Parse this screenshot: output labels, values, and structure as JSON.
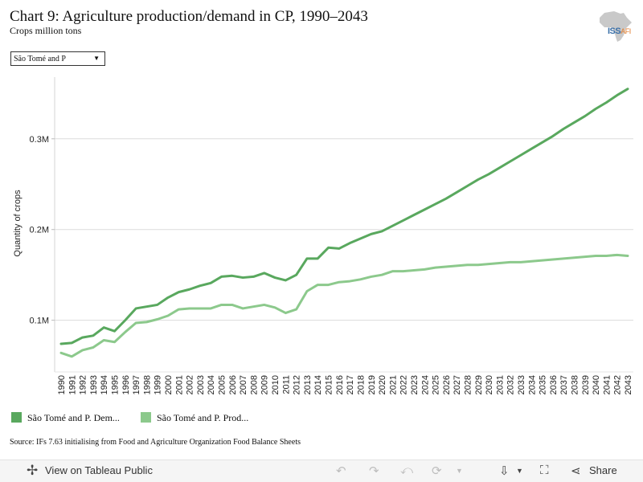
{
  "header": {
    "title": "Chart 9: Agriculture production/demand in CP, 1990–2043",
    "subtitle": "Crops million tons",
    "logo_text": "ISS",
    "logo_sub": "AFI"
  },
  "filter": {
    "selected": "São Tomé and P"
  },
  "legend": [
    {
      "label": "São Tomé and P. Dem...",
      "color": "#59a85e"
    },
    {
      "label": "São Tomé and P. Prod...",
      "color": "#8cc98c"
    }
  ],
  "source": "Source: IFs 7.63 initialising from Food and Agriculture Organization Food Balance Sheets",
  "toolbar": {
    "view_label": "View on Tableau Public",
    "share_label": "Share",
    "icons": [
      "tableau-logo-icon",
      "undo-icon",
      "redo-icon",
      "revert-icon",
      "refresh-icon",
      "download-icon",
      "fullscreen-icon",
      "share-icon"
    ]
  },
  "chart_data": {
    "type": "line",
    "title": "",
    "xlabel": "",
    "ylabel": "Quantity of crops",
    "ylim": [
      0.043,
      0.368
    ],
    "yticks": [
      0.1,
      0.2,
      0.3
    ],
    "ytick_labels": [
      "0.1M",
      "0.2M",
      "0.3M"
    ],
    "grid": true,
    "legend_position": "bottom-left",
    "x": [
      1990,
      1991,
      1992,
      1993,
      1994,
      1995,
      1996,
      1997,
      1998,
      1999,
      2000,
      2001,
      2002,
      2003,
      2004,
      2005,
      2006,
      2007,
      2008,
      2009,
      2010,
      2011,
      2012,
      2013,
      2014,
      2015,
      2016,
      2017,
      2018,
      2019,
      2020,
      2021,
      2022,
      2023,
      2024,
      2025,
      2026,
      2027,
      2028,
      2029,
      2030,
      2031,
      2032,
      2033,
      2034,
      2035,
      2036,
      2037,
      2038,
      2039,
      2040,
      2041,
      2042,
      2043
    ],
    "series": [
      {
        "name": "São Tomé and P. Dem...",
        "color": "#59a85e",
        "values": [
          0.074,
          0.075,
          0.081,
          0.083,
          0.092,
          0.088,
          0.1,
          0.113,
          0.115,
          0.117,
          0.125,
          0.131,
          0.134,
          0.138,
          0.141,
          0.148,
          0.149,
          0.147,
          0.148,
          0.152,
          0.147,
          0.144,
          0.15,
          0.168,
          0.168,
          0.18,
          0.179,
          0.185,
          0.19,
          0.195,
          0.198,
          0.204,
          0.21,
          0.216,
          0.222,
          0.228,
          0.234,
          0.241,
          0.248,
          0.255,
          0.261,
          0.268,
          0.275,
          0.282,
          0.289,
          0.296,
          0.303,
          0.311,
          0.318,
          0.325,
          0.333,
          0.34,
          0.348,
          0.355
        ]
      },
      {
        "name": "São Tomé and P. Prod...",
        "color": "#8cc98c",
        "values": [
          0.064,
          0.06,
          0.067,
          0.07,
          0.078,
          0.076,
          0.087,
          0.097,
          0.098,
          0.101,
          0.105,
          0.112,
          0.113,
          0.113,
          0.113,
          0.117,
          0.117,
          0.113,
          0.115,
          0.117,
          0.114,
          0.108,
          0.112,
          0.132,
          0.139,
          0.139,
          0.142,
          0.143,
          0.145,
          0.148,
          0.15,
          0.154,
          0.154,
          0.155,
          0.156,
          0.158,
          0.159,
          0.16,
          0.161,
          0.161,
          0.162,
          0.163,
          0.164,
          0.164,
          0.165,
          0.166,
          0.167,
          0.168,
          0.169,
          0.17,
          0.171,
          0.171,
          0.172,
          0.171
        ]
      }
    ]
  }
}
